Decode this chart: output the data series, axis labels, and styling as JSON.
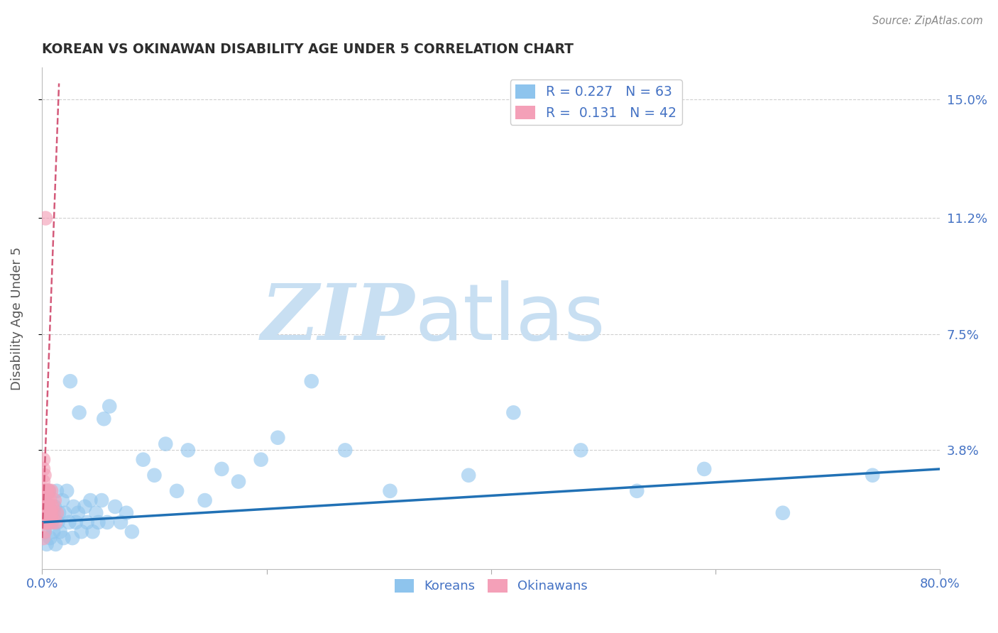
{
  "title": "KOREAN VS OKINAWAN DISABILITY AGE UNDER 5 CORRELATION CHART",
  "source": "Source: ZipAtlas.com",
  "xlabel": "",
  "ylabel": "Disability Age Under 5",
  "xlim": [
    0.0,
    0.8
  ],
  "ylim": [
    0.0,
    0.16
  ],
  "xticks": [
    0.0,
    0.2,
    0.4,
    0.6,
    0.8
  ],
  "xticklabels": [
    "0.0%",
    "",
    "",
    "",
    "80.0%"
  ],
  "yticks": [
    0.038,
    0.075,
    0.112,
    0.15
  ],
  "yticklabels": [
    "3.8%",
    "7.5%",
    "11.2%",
    "15.0%"
  ],
  "korean_R": 0.227,
  "korean_N": 63,
  "okinawan_R": 0.131,
  "okinawan_N": 42,
  "korean_color": "#8ec4ed",
  "okinawan_color": "#f4a0b8",
  "korean_line_color": "#2171b5",
  "okinawan_line_color": "#d45a7a",
  "watermark_zip": "ZIP",
  "watermark_atlas": "atlas",
  "watermark_color": "#c8dff2",
  "title_color": "#2d2d2d",
  "axis_label_color": "#555555",
  "tick_color": "#4472c4",
  "grid_color": "#d0d0d0",
  "background_color": "#ffffff",
  "korean_x": [
    0.002,
    0.003,
    0.003,
    0.004,
    0.005,
    0.006,
    0.006,
    0.007,
    0.008,
    0.009,
    0.01,
    0.011,
    0.012,
    0.013,
    0.014,
    0.015,
    0.016,
    0.018,
    0.019,
    0.02,
    0.022,
    0.024,
    0.025,
    0.027,
    0.028,
    0.03,
    0.032,
    0.033,
    0.035,
    0.038,
    0.04,
    0.043,
    0.045,
    0.048,
    0.05,
    0.053,
    0.055,
    0.058,
    0.06,
    0.065,
    0.07,
    0.075,
    0.08,
    0.09,
    0.1,
    0.11,
    0.12,
    0.13,
    0.145,
    0.16,
    0.175,
    0.195,
    0.21,
    0.24,
    0.27,
    0.31,
    0.38,
    0.42,
    0.48,
    0.53,
    0.59,
    0.66,
    0.74
  ],
  "korean_y": [
    0.012,
    0.018,
    0.022,
    0.008,
    0.015,
    0.02,
    0.025,
    0.01,
    0.015,
    0.018,
    0.012,
    0.02,
    0.008,
    0.025,
    0.015,
    0.018,
    0.012,
    0.022,
    0.01,
    0.018,
    0.025,
    0.015,
    0.06,
    0.01,
    0.02,
    0.015,
    0.018,
    0.05,
    0.012,
    0.02,
    0.015,
    0.022,
    0.012,
    0.018,
    0.015,
    0.022,
    0.048,
    0.015,
    0.052,
    0.02,
    0.015,
    0.018,
    0.012,
    0.035,
    0.03,
    0.04,
    0.025,
    0.038,
    0.022,
    0.032,
    0.028,
    0.035,
    0.042,
    0.06,
    0.038,
    0.025,
    0.03,
    0.05,
    0.038,
    0.025,
    0.032,
    0.018,
    0.03
  ],
  "okinawan_x": [
    0.001,
    0.001,
    0.001,
    0.001,
    0.001,
    0.001,
    0.001,
    0.001,
    0.001,
    0.002,
    0.002,
    0.002,
    0.002,
    0.002,
    0.002,
    0.002,
    0.003,
    0.003,
    0.003,
    0.003,
    0.003,
    0.004,
    0.004,
    0.004,
    0.004,
    0.005,
    0.005,
    0.005,
    0.006,
    0.006,
    0.006,
    0.006,
    0.007,
    0.007,
    0.008,
    0.008,
    0.009,
    0.009,
    0.01,
    0.011,
    0.012,
    0.013
  ],
  "okinawan_y": [
    0.018,
    0.025,
    0.032,
    0.02,
    0.015,
    0.01,
    0.022,
    0.028,
    0.035,
    0.018,
    0.025,
    0.015,
    0.02,
    0.03,
    0.012,
    0.022,
    0.018,
    0.025,
    0.015,
    0.02,
    0.112,
    0.018,
    0.025,
    0.015,
    0.02,
    0.018,
    0.025,
    0.022,
    0.018,
    0.025,
    0.015,
    0.02,
    0.018,
    0.022,
    0.018,
    0.025,
    0.015,
    0.02,
    0.018,
    0.022,
    0.015,
    0.018
  ],
  "korean_trend_x0": 0.0,
  "korean_trend_y0": 0.015,
  "korean_trend_x1": 0.8,
  "korean_trend_y1": 0.032,
  "okinawan_trend_x0": 0.0,
  "okinawan_trend_y0": 0.01,
  "okinawan_trend_x1": 0.015,
  "okinawan_trend_y1": 0.155
}
